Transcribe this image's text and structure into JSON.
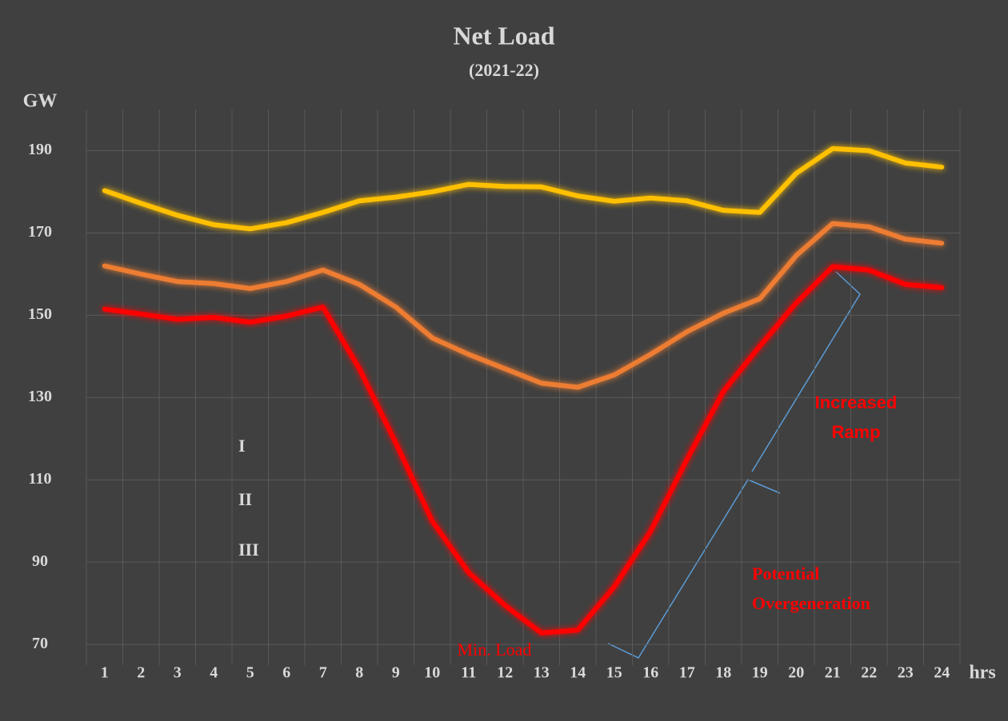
{
  "chart_data": {
    "type": "line",
    "title": "Net Load",
    "subtitle": "(2021-22)",
    "y_label": "GW",
    "x_label": "hrs",
    "categories": [
      "1",
      "2",
      "3",
      "4",
      "5",
      "6",
      "7",
      "8",
      "9",
      "10",
      "11",
      "12",
      "13",
      "14",
      "15",
      "16",
      "17",
      "18",
      "19",
      "20",
      "21",
      "22",
      "23",
      "24"
    ],
    "series": [
      {
        "name": "I",
        "color": "#ffc000",
        "values": [
          180.3,
          177.2,
          174.3,
          172,
          171,
          172.5,
          175,
          177.8,
          178.7,
          180,
          181.8,
          181.3,
          181.2,
          179,
          177.7,
          178.5,
          177.8,
          175.5,
          175,
          184.5,
          190.5,
          190,
          187,
          186
        ]
      },
      {
        "name": "II",
        "color": "#ed7d31",
        "values": [
          162,
          160,
          158.2,
          157.7,
          156.5,
          158.2,
          161,
          157.5,
          152,
          144.5,
          140.5,
          137,
          133.5,
          132.5,
          135.5,
          140.5,
          146,
          150.5,
          154,
          164.5,
          172.3,
          171.5,
          168.5,
          167.5
        ]
      },
      {
        "name": "III",
        "color": "#ff0000",
        "values": [
          151.5,
          150.3,
          149,
          149.5,
          148.3,
          149.8,
          152,
          137,
          119,
          100,
          87.5,
          79.5,
          72.8,
          73.5,
          84,
          97.5,
          115,
          131.5,
          142.5,
          153,
          161.8,
          161,
          157.5,
          156.7
        ]
      }
    ],
    "ylim": [
      65,
      200
    ],
    "yticks": [
      70,
      90,
      110,
      130,
      150,
      170,
      190
    ],
    "grid": true,
    "annotations": [
      [
        "Increased",
        "Ramp"
      ],
      [
        "Potential",
        "Overgeneration"
      ],
      [
        "Min. Load"
      ]
    ]
  }
}
